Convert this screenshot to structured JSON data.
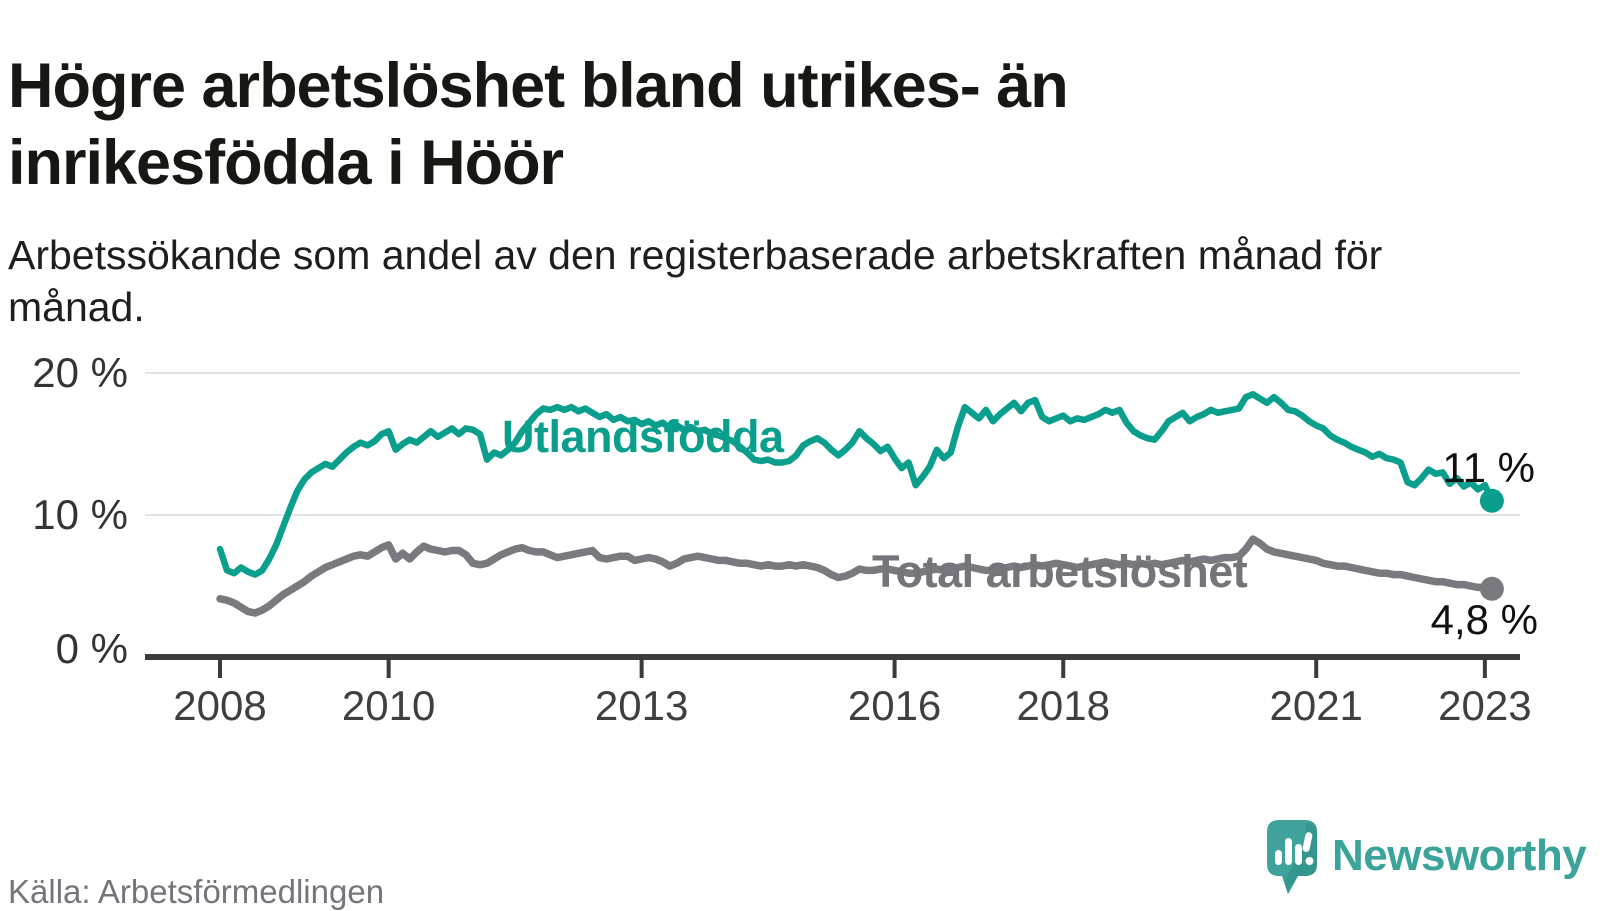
{
  "header": {
    "title": "Högre arbetslöshet bland utrikes- än inrikesfödda i Höör",
    "subtitle": "Arbetssökande som andel av den registerbaserade arbetskraften månad för månad."
  },
  "footer": {
    "source": "Källa: Arbetsförmedlingen",
    "brand_name": "Newsworthy",
    "brand_icon": "map-pin-bar-chart-icon"
  },
  "colors": {
    "series_foreign": "#0a9e8c",
    "series_total": "#7a797f",
    "axis": "#3b3b3b",
    "grid": "#e3e3e3",
    "brand_teal": "#3aa39a"
  },
  "chart_data": {
    "type": "line",
    "unit": "%",
    "frequency": "monthly",
    "x_start": "2008-01",
    "x_end": "2023-02",
    "grid": "horizontal",
    "ylim": [
      0,
      21.5
    ],
    "y_ticks": [
      {
        "value": 20,
        "label": "20 %"
      },
      {
        "value": 10,
        "label": "10 %"
      },
      {
        "value": 0,
        "label": "0 %"
      }
    ],
    "x_ticks": [
      {
        "year": 2008,
        "label": "2008"
      },
      {
        "year": 2010,
        "label": "2010"
      },
      {
        "year": 2013,
        "label": "2013"
      },
      {
        "year": 2016,
        "label": "2016"
      },
      {
        "year": 2018,
        "label": "2018"
      },
      {
        "year": 2021,
        "label": "2021"
      },
      {
        "year": 2023,
        "label": "2023"
      }
    ],
    "series": [
      {
        "name": "Utlandsfödda",
        "color": "#0a9e8c",
        "end_label": "11 %",
        "end_value": 11.0,
        "values": [
          7.6,
          6.1,
          5.9,
          6.3,
          6.0,
          5.8,
          6.1,
          6.9,
          7.9,
          9.2,
          10.5,
          11.7,
          12.5,
          13.0,
          13.3,
          13.6,
          13.4,
          13.9,
          14.4,
          14.8,
          15.1,
          14.9,
          15.2,
          15.7,
          15.9,
          14.6,
          15.0,
          15.3,
          15.1,
          15.5,
          15.9,
          15.5,
          15.8,
          16.1,
          15.7,
          16.1,
          16.0,
          15.7,
          13.9,
          14.4,
          14.2,
          14.6,
          15.1,
          15.9,
          16.5,
          17.1,
          17.5,
          17.4,
          17.6,
          17.4,
          17.6,
          17.3,
          17.5,
          17.2,
          16.9,
          17.1,
          16.7,
          16.9,
          16.6,
          16.7,
          16.4,
          16.6,
          16.3,
          16.5,
          16.1,
          16.3,
          16.0,
          16.2,
          15.9,
          16.0,
          15.7,
          15.6,
          15.4,
          15.2,
          14.8,
          14.4,
          13.9,
          13.8,
          13.9,
          13.7,
          13.7,
          13.8,
          14.2,
          14.9,
          15.2,
          15.4,
          15.1,
          14.6,
          14.2,
          14.6,
          15.1,
          15.9,
          15.4,
          15.0,
          14.5,
          14.8,
          14.0,
          13.3,
          13.7,
          12.1,
          12.7,
          13.4,
          14.6,
          14.0,
          14.4,
          16.2,
          17.6,
          17.2,
          16.8,
          17.4,
          16.6,
          17.1,
          17.5,
          17.9,
          17.3,
          17.9,
          18.1,
          16.9,
          16.6,
          16.8,
          17.0,
          16.6,
          16.8,
          16.7,
          16.9,
          17.1,
          17.4,
          17.2,
          17.4,
          16.5,
          15.9,
          15.6,
          15.4,
          15.3,
          15.9,
          16.6,
          16.9,
          17.2,
          16.6,
          16.9,
          17.1,
          17.4,
          17.2,
          17.3,
          17.4,
          17.5,
          18.3,
          18.5,
          18.2,
          17.9,
          18.3,
          17.9,
          17.4,
          17.3,
          17.0,
          16.6,
          16.3,
          16.1,
          15.6,
          15.3,
          15.1,
          14.8,
          14.6,
          14.4,
          14.1,
          14.3,
          14.0,
          13.9,
          13.7,
          12.3,
          12.1,
          12.6,
          13.2,
          12.9,
          13.0,
          12.2,
          12.6,
          12.0,
          12.3,
          11.8,
          12.1,
          11.0
        ]
      },
      {
        "name": "Total arbetslöshet",
        "color": "#7a797f",
        "end_label": "4,8 %",
        "end_value": 4.8,
        "values": [
          4.1,
          4.0,
          3.8,
          3.5,
          3.2,
          3.1,
          3.3,
          3.6,
          4.0,
          4.4,
          4.7,
          5.0,
          5.3,
          5.7,
          6.0,
          6.3,
          6.5,
          6.7,
          6.9,
          7.1,
          7.2,
          7.1,
          7.4,
          7.7,
          7.9,
          6.9,
          7.3,
          6.9,
          7.4,
          7.8,
          7.6,
          7.5,
          7.4,
          7.5,
          7.5,
          7.2,
          6.6,
          6.5,
          6.6,
          6.9,
          7.2,
          7.4,
          7.6,
          7.7,
          7.5,
          7.4,
          7.4,
          7.2,
          7.0,
          7.1,
          7.2,
          7.3,
          7.4,
          7.5,
          7.0,
          6.9,
          7.0,
          7.1,
          7.1,
          6.8,
          6.9,
          7.0,
          6.9,
          6.7,
          6.4,
          6.6,
          6.9,
          7.0,
          7.1,
          7.0,
          6.9,
          6.8,
          6.8,
          6.7,
          6.6,
          6.6,
          6.5,
          6.4,
          6.5,
          6.4,
          6.4,
          6.5,
          6.4,
          6.5,
          6.4,
          6.3,
          6.1,
          5.8,
          5.6,
          5.7,
          5.9,
          6.2,
          6.1,
          6.1,
          6.2,
          6.2,
          6.1,
          6.0,
          5.9,
          5.9,
          6.0,
          6.1,
          6.2,
          6.1,
          6.2,
          6.3,
          6.4,
          6.3,
          6.2,
          6.1,
          6.1,
          6.2,
          6.3,
          6.4,
          6.3,
          6.4,
          6.5,
          6.4,
          6.5,
          6.6,
          6.5,
          6.4,
          6.3,
          6.4,
          6.5,
          6.6,
          6.7,
          6.6,
          6.5,
          6.6,
          6.5,
          6.6,
          6.5,
          6.6,
          6.5,
          6.6,
          6.7,
          6.8,
          6.7,
          6.8,
          6.9,
          6.8,
          6.9,
          7.0,
          7.0,
          7.1,
          7.6,
          8.3,
          8.0,
          7.6,
          7.4,
          7.3,
          7.2,
          7.1,
          7.0,
          6.9,
          6.8,
          6.6,
          6.5,
          6.4,
          6.4,
          6.3,
          6.2,
          6.1,
          6.0,
          5.9,
          5.9,
          5.8,
          5.8,
          5.7,
          5.6,
          5.5,
          5.4,
          5.3,
          5.3,
          5.2,
          5.1,
          5.1,
          5.0,
          4.9,
          4.9,
          4.8
        ]
      }
    ]
  }
}
